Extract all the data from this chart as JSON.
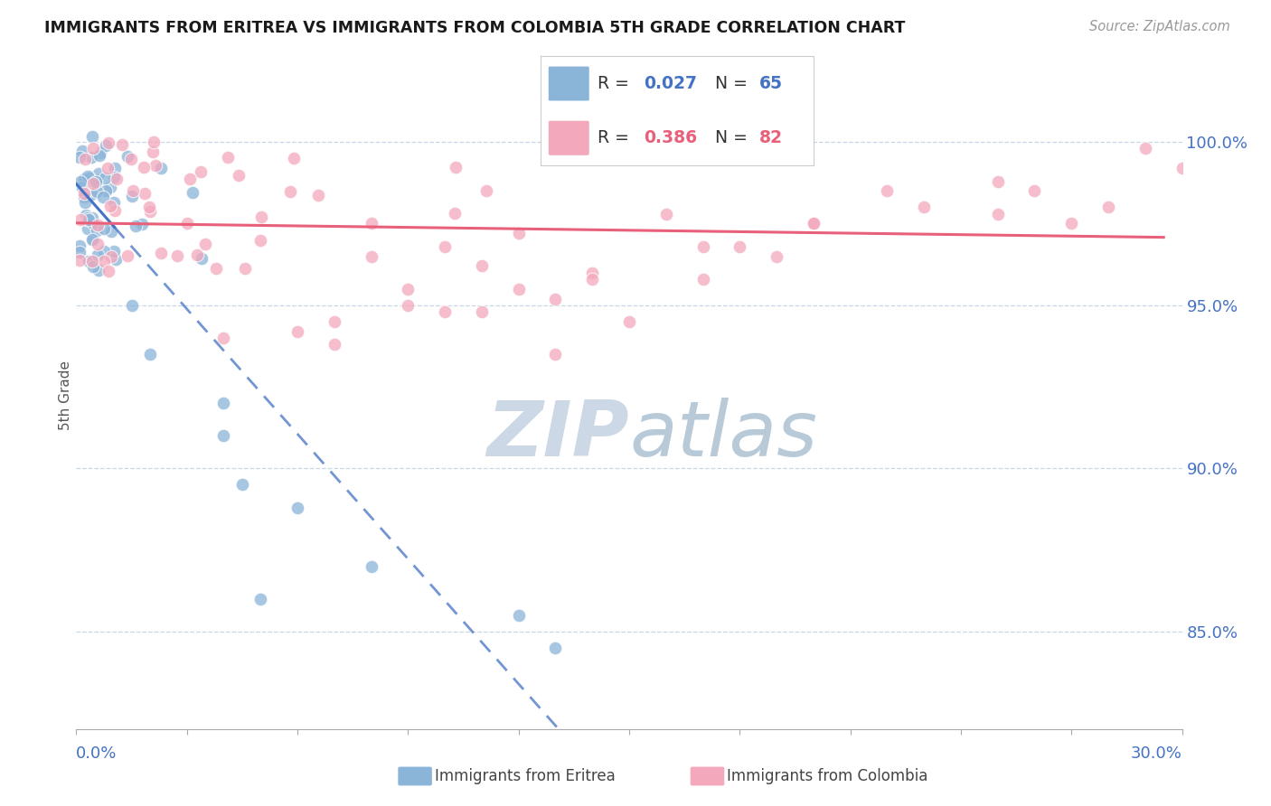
{
  "title": "IMMIGRANTS FROM ERITREA VS IMMIGRANTS FROM COLOMBIA 5TH GRADE CORRELATION CHART",
  "source": "Source: ZipAtlas.com",
  "ylabel": "5th Grade",
  "ytick_values": [
    0.85,
    0.9,
    0.95,
    1.0
  ],
  "ytick_labels": [
    "85.0%",
    "90.0%",
    "95.0%",
    "100.0%"
  ],
  "xlim": [
    0.0,
    0.3
  ],
  "ylim": [
    0.82,
    1.025
  ],
  "legend_eritrea_R": "0.027",
  "legend_eritrea_N": "65",
  "legend_colombia_R": "0.386",
  "legend_colombia_N": "82",
  "color_eritrea": "#8ab4d8",
  "color_colombia": "#f4a8bc",
  "color_trendline_eritrea": "#4472c4",
  "color_trendline_colombia": "#e8607a",
  "color_axis_text": "#4472c4",
  "background_color": "#ffffff",
  "watermark_zip_color": "#d0dce8",
  "watermark_atlas_color": "#c8d8e8"
}
